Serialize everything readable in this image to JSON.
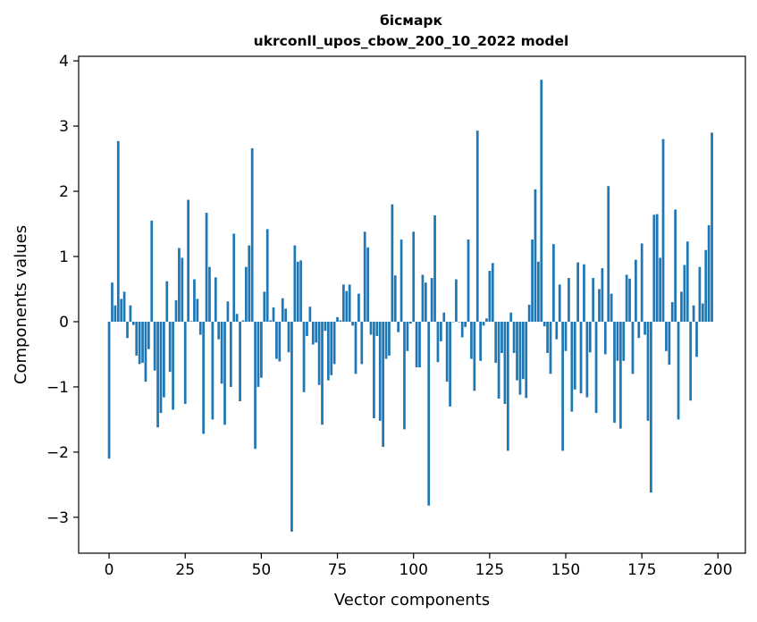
{
  "chart_data": {
    "type": "bar",
    "title_line1": "бісмарк",
    "title_line2": "ukrconll_upos_cbow_200_10_2022 model",
    "xlabel": "Vector components",
    "ylabel": "Components values",
    "xlim": [
      -10,
      209
    ],
    "ylim": [
      -3.55,
      4.07
    ],
    "xticks": [
      0,
      25,
      50,
      75,
      100,
      125,
      150,
      175,
      200
    ],
    "yticks": [
      -3,
      -2,
      -1,
      0,
      1,
      2,
      3,
      4
    ],
    "xtick_labels": [
      "0",
      "25",
      "50",
      "75",
      "100",
      "125",
      "150",
      "175",
      "200"
    ],
    "ytick_labels": [
      "−3",
      "−2",
      "−1",
      "0",
      "1",
      "2",
      "3",
      "4"
    ],
    "bar_color": "#1f77b4",
    "grid": false,
    "values": [
      -2.1,
      0.6,
      0.25,
      2.77,
      0.35,
      0.46,
      -0.25,
      0.25,
      -0.05,
      -0.52,
      -0.65,
      -0.63,
      -0.92,
      -0.42,
      1.55,
      -0.75,
      -1.62,
      -1.4,
      -1.16,
      0.62,
      -0.77,
      -1.35,
      0.33,
      1.13,
      0.98,
      -1.26,
      1.87,
      0.01,
      0.65,
      0.35,
      -0.2,
      -1.72,
      1.67,
      0.84,
      -1.5,
      0.68,
      -0.27,
      -0.95,
      -1.58,
      0.31,
      -1.0,
      1.35,
      0.12,
      -1.22,
      0.02,
      0.84,
      1.17,
      2.66,
      -1.95,
      -1.0,
      -0.86,
      0.46,
      1.42,
      0.02,
      0.22,
      -0.57,
      -0.61,
      0.36,
      0.2,
      -0.47,
      -3.22,
      1.17,
      0.92,
      0.94,
      -1.08,
      -0.22,
      0.23,
      -0.35,
      -0.32,
      -0.97,
      -1.58,
      -0.14,
      -0.9,
      -0.82,
      -0.65,
      0.07,
      0.02,
      0.57,
      0.47,
      0.57,
      -0.06,
      -0.8,
      0.43,
      -0.65,
      1.38,
      1.14,
      -0.2,
      -1.48,
      -0.22,
      -1.52,
      -1.92,
      -0.57,
      -0.52,
      1.8,
      0.71,
      -0.16,
      1.26,
      -1.65,
      -0.45,
      -0.03,
      1.38,
      -0.7,
      -0.7,
      0.72,
      0.6,
      -2.82,
      0.67,
      1.63,
      -0.62,
      -0.3,
      0.14,
      -0.92,
      -1.3,
      0.0,
      0.65,
      0.0,
      -0.24,
      -0.08,
      1.26,
      -0.57,
      -1.06,
      2.93,
      -0.6,
      -0.06,
      0.05,
      0.78,
      0.9,
      -0.63,
      -1.18,
      -0.48,
      -1.26,
      -1.98,
      0.14,
      -0.48,
      -0.9,
      -1.12,
      -0.88,
      -1.17,
      0.26,
      1.26,
      2.03,
      0.92,
      3.71,
      -0.07,
      -0.48,
      -0.8,
      1.19,
      -0.27,
      0.57,
      -1.98,
      -0.45,
      0.67,
      -1.38,
      -1.04,
      0.91,
      -1.1,
      0.88,
      -1.16,
      -0.47,
      0.67,
      -1.4,
      0.5,
      0.82,
      -0.5,
      2.08,
      0.43,
      -1.55,
      -0.6,
      -1.64,
      -0.6,
      0.72,
      0.66,
      -0.8,
      0.95,
      -0.25,
      1.2,
      -0.2,
      -1.52,
      -2.62,
      1.64,
      1.65,
      0.98,
      2.8,
      -0.45,
      -0.66,
      0.3,
      1.72,
      -1.5,
      0.46,
      0.87,
      1.23,
      -1.21,
      0.25,
      -0.54,
      0.84,
      0.28,
      1.1,
      1.48,
      2.9
    ]
  }
}
